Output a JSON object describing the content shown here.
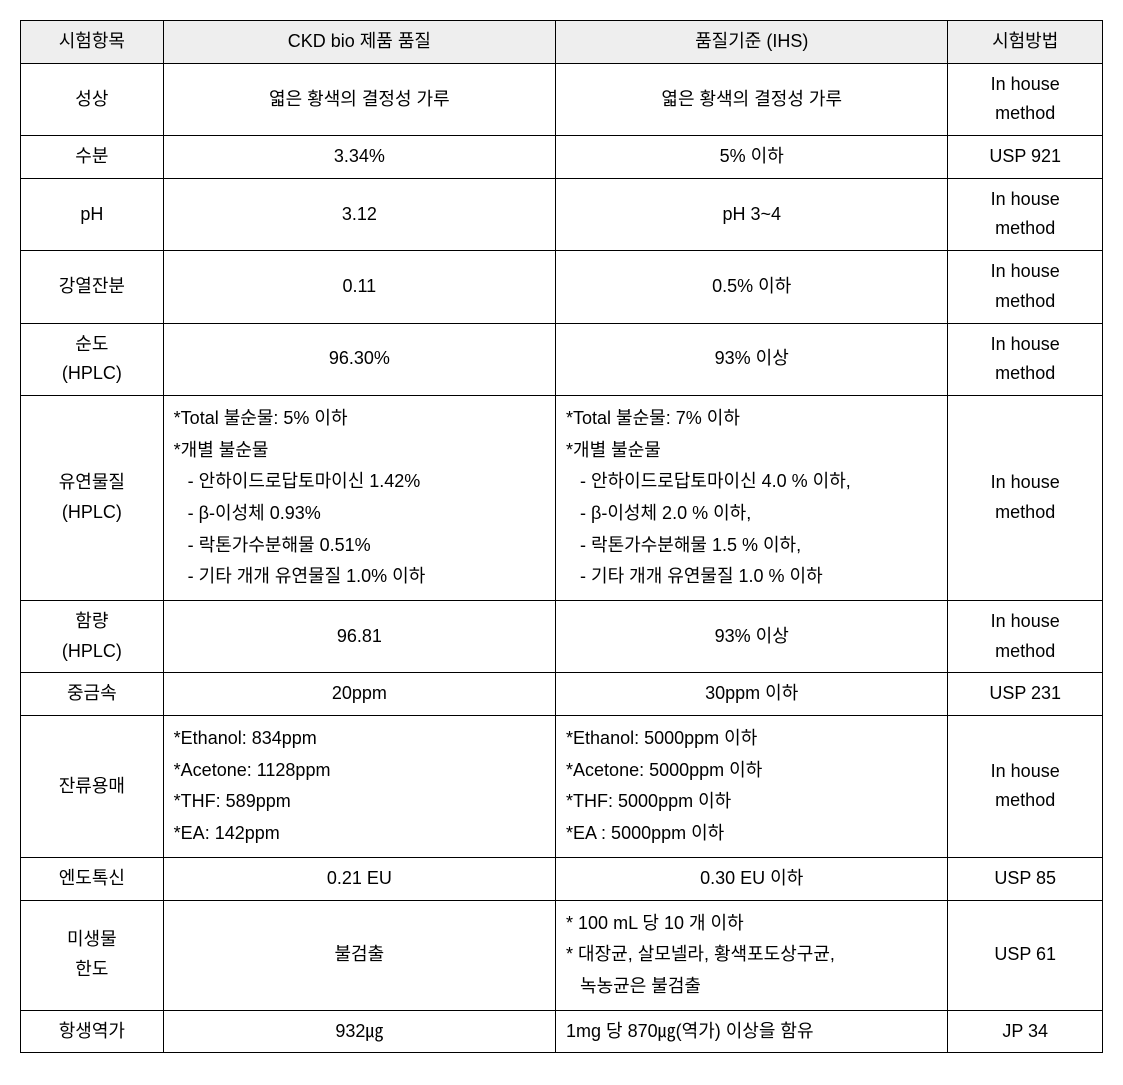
{
  "table": {
    "headers": [
      "시험항목",
      "CKD bio 제품 품질",
      "품질기준 (IHS)",
      "시험방법"
    ],
    "rows": [
      {
        "item": "성상",
        "ckd": "엷은 황색의 결정성 가루",
        "ihs": "엷은 황색의 결정성 가루",
        "method": "In house method",
        "ckd_align": "center",
        "ihs_align": "center"
      },
      {
        "item": "수분",
        "ckd": "3.34%",
        "ihs": "5% 이하",
        "method": "USP 921",
        "ckd_align": "center",
        "ihs_align": "center"
      },
      {
        "item": "pH",
        "ckd": "3.12",
        "ihs": "pH 3~4",
        "method": "In house method",
        "ckd_align": "center",
        "ihs_align": "center"
      },
      {
        "item": "강열잔분",
        "ckd": "0.11",
        "ihs": "0.5% 이하",
        "method": "In house method",
        "ckd_align": "center",
        "ihs_align": "center"
      },
      {
        "item": "순도 (HPLC)",
        "ckd": "96.30%",
        "ihs": "93% 이상",
        "method": "In house method",
        "ckd_align": "center",
        "ihs_align": "center"
      },
      {
        "item": "유연물질 (HPLC)",
        "ckd_lines": [
          "*Total 불순물: 5% 이하",
          "*개별 불순물",
          "  - 안하이드로답토마이신 1.42%",
          "  - β-이성체 0.93%",
          "  - 락톤가수분해물 0.51%",
          "  - 기타 개개 유연물질 1.0% 이하"
        ],
        "ihs_lines": [
          "*Total 불순물: 7% 이하",
          "*개별 불순물",
          "  - 안하이드로답토마이신 4.0 % 이하,",
          "  - β-이성체 2.0 % 이하,",
          "  - 락톤가수분해물 1.5 % 이하,",
          "  - 기타 개개 유연물질 1.0 % 이하"
        ],
        "method": "In house method",
        "ckd_align": "left",
        "ihs_align": "left",
        "multiline": true
      },
      {
        "item": "함량 (HPLC)",
        "ckd": "96.81",
        "ihs": "93% 이상",
        "method": "In house method",
        "ckd_align": "center",
        "ihs_align": "center"
      },
      {
        "item": "중금속",
        "ckd": "20ppm",
        "ihs": "30ppm 이하",
        "method": "USP 231",
        "ckd_align": "center",
        "ihs_align": "center"
      },
      {
        "item": "잔류용매",
        "ckd_lines": [
          "*Ethanol: 834ppm",
          "*Acetone: 1128ppm",
          "*THF: 589ppm",
          "*EA: 142ppm"
        ],
        "ihs_lines": [
          "*Ethanol: 5000ppm 이하",
          "*Acetone: 5000ppm 이하",
          "*THF: 5000ppm 이하",
          "*EA : 5000ppm 이하"
        ],
        "method": "In house method",
        "ckd_align": "left",
        "ihs_align": "left",
        "multiline": true
      },
      {
        "item": "엔도톡신",
        "ckd": "0.21 EU",
        "ihs": "0.30 EU 이하",
        "method": "USP 85",
        "ckd_align": "center",
        "ihs_align": "center"
      },
      {
        "item": "미생물 한도",
        "ckd": "불검출",
        "ihs_lines": [
          "* 100 mL 당 10 개 이하",
          "* 대장균, 살모넬라, 황색포도상구균,",
          "   녹농균은 불검출"
        ],
        "method": "USP 61",
        "ckd_align": "center",
        "ihs_align": "left",
        "multiline_ihs": true
      },
      {
        "item": "항생역가",
        "ckd": "932㎍",
        "ihs": "1mg 당 870㎍(역가) 이상을 함유",
        "method": "JP 34",
        "ckd_align": "center",
        "ihs_align": "left"
      }
    ]
  }
}
